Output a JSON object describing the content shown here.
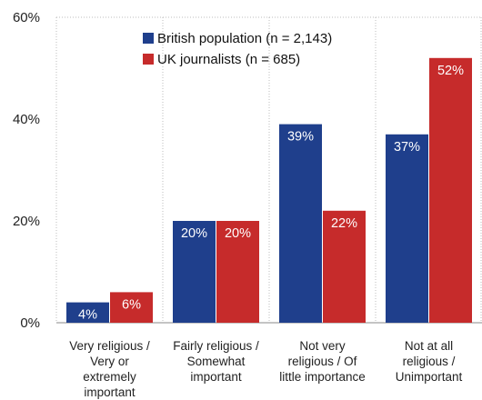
{
  "chart_data": {
    "type": "bar",
    "categories": [
      [
        "Very religious /",
        "Very or",
        "extremely",
        "important"
      ],
      [
        "Fairly religious /",
        "Somewhat",
        "important"
      ],
      [
        "Not very",
        "religious / Of",
        "little importance"
      ],
      [
        "Not at all",
        "religious /",
        "Unimportant"
      ]
    ],
    "series": [
      {
        "name": "British population (n = 2,143)",
        "color": "#1f3f8c",
        "values": [
          4,
          20,
          39,
          37
        ],
        "labels": [
          "4%",
          "20%",
          "39%",
          "37%"
        ]
      },
      {
        "name": "UK journalists (n = 685)",
        "color": "#c62b2b",
        "values": [
          6,
          20,
          22,
          52
        ],
        "labels": [
          "6%",
          "20%",
          "22%",
          "52%"
        ]
      }
    ],
    "ylim": [
      0,
      60
    ],
    "yticks": [
      0,
      20,
      40,
      60
    ],
    "ytick_labels": [
      "0%",
      "20%",
      "40%",
      "60%"
    ],
    "grid": "vertical-dotted-separators",
    "legend_position": "top-center"
  }
}
